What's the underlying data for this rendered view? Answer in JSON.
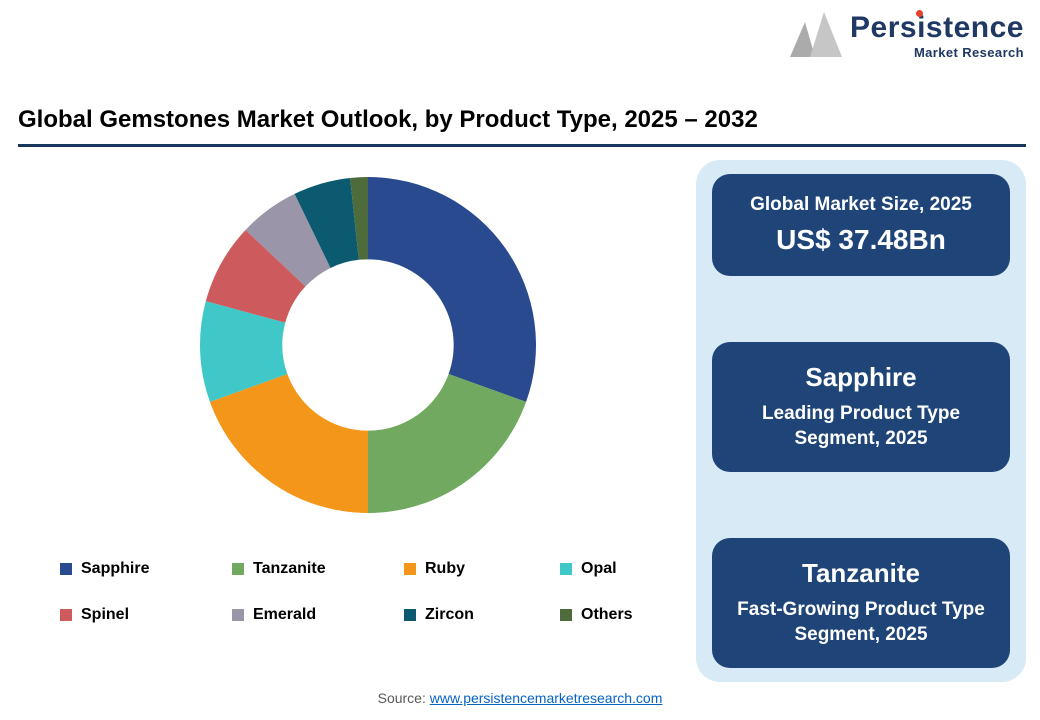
{
  "logo": {
    "brand": "Persistence",
    "tagline": "Market Research",
    "dot_color": "#E8412C",
    "brand_color": "#1F3864"
  },
  "header": {
    "title": "Global Gemstones Market Outlook, by Product Type, 2025 – 2032"
  },
  "chart_data": {
    "type": "pie",
    "subtype": "donut",
    "title": "Global Gemstones Market Outlook, by Product Type, 2025 – 2032",
    "categories": [
      "Sapphire",
      "Tanzanite",
      "Ruby",
      "Opal",
      "Spinel",
      "Emerald",
      "Zircon",
      "Others"
    ],
    "values": [
      30.5,
      19.5,
      19.5,
      9.7,
      7.8,
      5.8,
      5.5,
      1.7
    ],
    "colors": [
      "#2A4A8F",
      "#70A95F",
      "#F49619",
      "#40C8C8",
      "#CD5B5E",
      "#9A95A9",
      "#0C5A70",
      "#4D6B3B"
    ],
    "units": "percent_share",
    "donut_hole_ratio": 0.51,
    "start_angle_deg": 0,
    "direction": "clockwise",
    "legend_position": "bottom",
    "legend_rows": [
      [
        "Sapphire",
        "Tanzanite",
        "Ruby",
        "Opal"
      ],
      [
        "Spinel",
        "Emerald",
        "Zircon",
        "Others"
      ]
    ]
  },
  "info_panel": {
    "background": "#D8EAF6",
    "card_color": "#1F4478",
    "cards": [
      {
        "line1": "Global Market Size, 2025",
        "line2": "US$ 37.48Bn"
      },
      {
        "line1": "Sapphire",
        "line2": "Leading Product Type Segment, 2025"
      },
      {
        "line1": "Tanzanite",
        "line2": "Fast-Growing Product Type Segment, 2025"
      }
    ]
  },
  "footer": {
    "source_label": "Source:",
    "source_link": "www.persistencemarketresearch.com"
  }
}
